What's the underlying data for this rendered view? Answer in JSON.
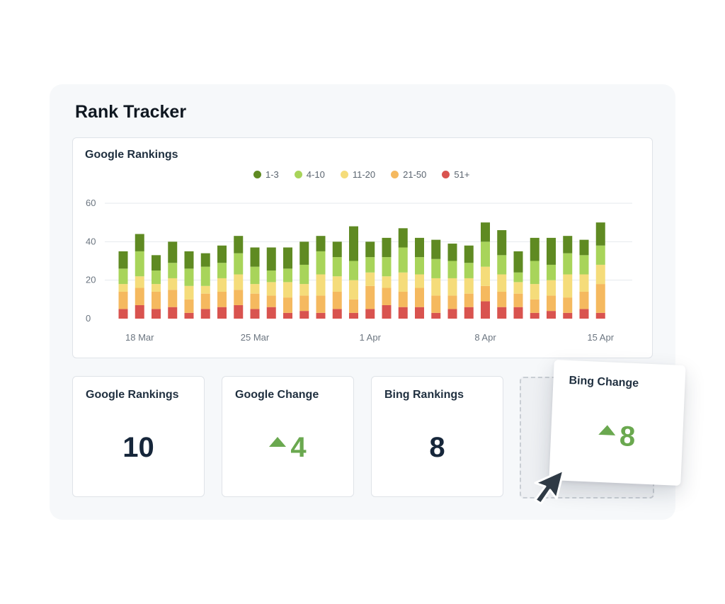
{
  "page": {
    "title": "Rank Tracker"
  },
  "chart_data": {
    "type": "bar",
    "stacked": true,
    "title": "Google Rankings",
    "legend_position": "top-center",
    "grid": true,
    "ylim": [
      0,
      60
    ],
    "y_ticks": [
      "60",
      "40",
      "20",
      "0"
    ],
    "x_tick_labels": [
      "18 Mar",
      "25 Mar",
      "1 Apr",
      "8 Apr",
      "15 Apr"
    ],
    "x_tick_indices": [
      1,
      8,
      15,
      22,
      29
    ],
    "categories": [
      "17 Mar",
      "18 Mar",
      "19 Mar",
      "20 Mar",
      "21 Mar",
      "22 Mar",
      "23 Mar",
      "24 Mar",
      "25 Mar",
      "26 Mar",
      "27 Mar",
      "28 Mar",
      "29 Mar",
      "30 Mar",
      "31 Mar",
      "1 Apr",
      "2 Apr",
      "3 Apr",
      "4 Apr",
      "5 Apr",
      "6 Apr",
      "7 Apr",
      "8 Apr",
      "9 Apr",
      "10 Apr",
      "11 Apr",
      "12 Apr",
      "13 Apr",
      "14 Apr",
      "15 Apr"
    ],
    "series": [
      {
        "name": "51+",
        "color": "#d9534f",
        "values": [
          5,
          7,
          5,
          6,
          3,
          5,
          6,
          7,
          5,
          6,
          3,
          4,
          3,
          5,
          3,
          5,
          7,
          6,
          6,
          3,
          5,
          6,
          9,
          6,
          6,
          3,
          4,
          3,
          5,
          3
        ]
      },
      {
        "name": "21-50",
        "color": "#f5b95f",
        "values": [
          9,
          9,
          9,
          9,
          7,
          8,
          8,
          8,
          8,
          6,
          8,
          8,
          9,
          9,
          7,
          12,
          9,
          8,
          10,
          9,
          7,
          7,
          8,
          8,
          7,
          7,
          8,
          8,
          9,
          15
        ]
      },
      {
        "name": "11-20",
        "color": "#f5dc7a",
        "values": [
          4,
          6,
          4,
          6,
          7,
          4,
          7,
          8,
          5,
          7,
          8,
          6,
          11,
          8,
          10,
          7,
          6,
          10,
          7,
          9,
          9,
          8,
          10,
          9,
          6,
          8,
          8,
          12,
          9,
          10
        ]
      },
      {
        "name": "4-10",
        "color": "#a8d45a",
        "values": [
          8,
          13,
          7,
          8,
          9,
          10,
          8,
          11,
          9,
          6,
          7,
          10,
          12,
          10,
          10,
          8,
          10,
          13,
          9,
          10,
          9,
          8,
          13,
          10,
          5,
          12,
          8,
          11,
          10,
          10
        ]
      },
      {
        "name": "1-3",
        "color": "#5f8a22",
        "values": [
          9,
          9,
          8,
          11,
          9,
          7,
          9,
          9,
          10,
          12,
          11,
          12,
          8,
          8,
          18,
          8,
          10,
          10,
          10,
          10,
          9,
          9,
          10,
          13,
          11,
          12,
          14,
          9,
          8,
          12
        ]
      }
    ]
  },
  "cards": [
    {
      "label": "Google Rankings",
      "value": "10"
    },
    {
      "label": "Google Change",
      "value": "4",
      "trend": "up"
    },
    {
      "label": "Bing Rankings",
      "value": "8"
    },
    {
      "label": "Bing Change",
      "value": "8",
      "trend": "up"
    }
  ],
  "icons": {
    "trend": "up-arrow-icon",
    "cursor": "mouse-pointer-icon"
  }
}
